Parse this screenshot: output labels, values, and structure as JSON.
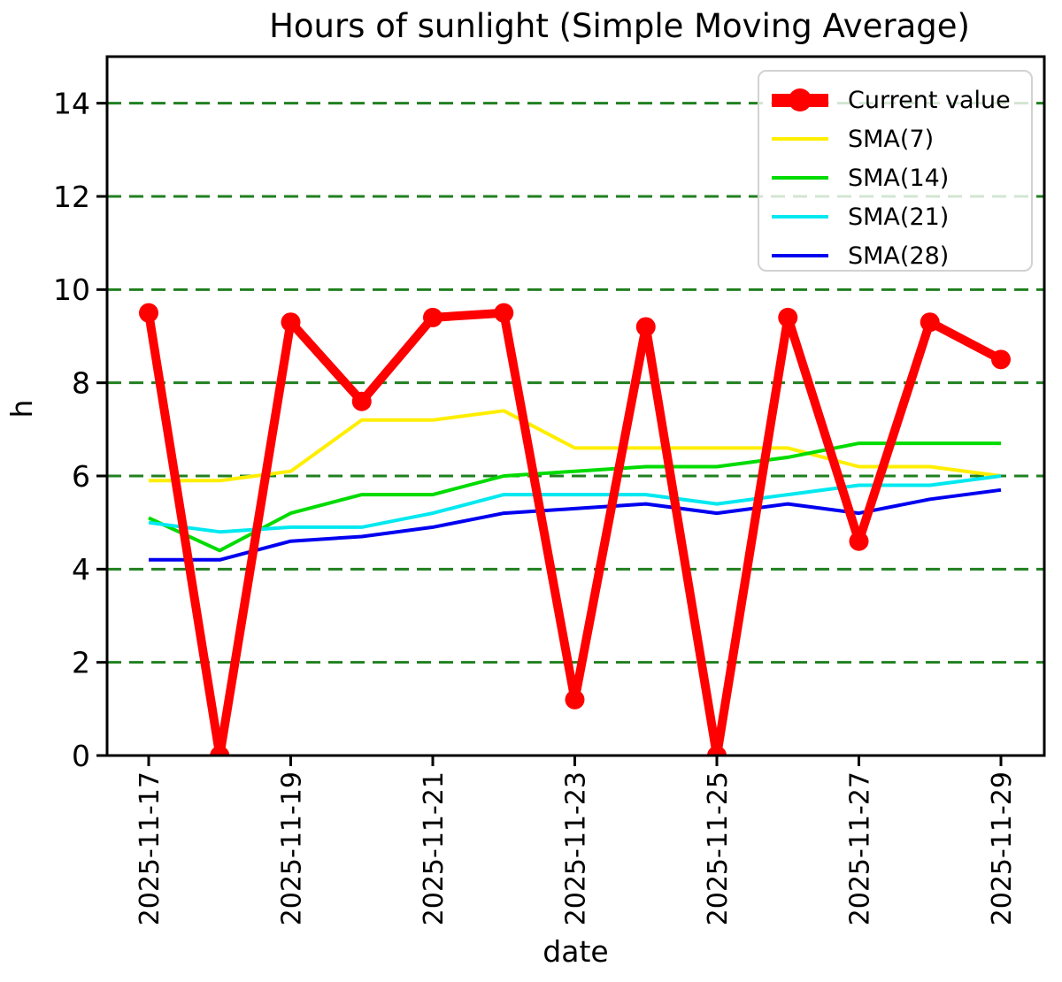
{
  "title": "Hours of sunlight (Simple Moving Average)",
  "xlabel": "date",
  "ylabel": "h",
  "legend": {
    "items": [
      {
        "label": "Current value",
        "color": "#ff0000",
        "thick": true
      },
      {
        "label": "SMA(7)",
        "color": "#ffee00",
        "thick": false
      },
      {
        "label": "SMA(14)",
        "color": "#00db00",
        "thick": false
      },
      {
        "label": "SMA(21)",
        "color": "#00e8f0",
        "thick": false
      },
      {
        "label": "SMA(28)",
        "color": "#0000f0",
        "thick": false
      }
    ]
  },
  "chart_data": {
    "type": "line",
    "x": [
      "2025-11-17",
      "2025-11-18",
      "2025-11-19",
      "2025-11-20",
      "2025-11-21",
      "2025-11-22",
      "2025-11-23",
      "2025-11-24",
      "2025-11-25",
      "2025-11-26",
      "2025-11-27",
      "2025-11-28",
      "2025-11-29"
    ],
    "series": [
      {
        "name": "Current value",
        "color": "#ff0000",
        "width": 10,
        "marker": true,
        "values": [
          9.5,
          0.0,
          9.3,
          7.6,
          9.4,
          9.5,
          1.2,
          9.2,
          0.0,
          9.4,
          4.6,
          9.3,
          8.5
        ]
      },
      {
        "name": "SMA(7)",
        "color": "#ffee00",
        "width": 4,
        "marker": false,
        "values": [
          5.9,
          5.9,
          6.1,
          7.2,
          7.2,
          7.4,
          6.6,
          6.6,
          6.6,
          6.6,
          6.2,
          6.2,
          6.0
        ]
      },
      {
        "name": "SMA(14)",
        "color": "#00db00",
        "width": 4,
        "marker": false,
        "values": [
          5.1,
          4.4,
          5.2,
          5.6,
          5.6,
          6.0,
          6.1,
          6.2,
          6.2,
          6.4,
          6.7,
          6.7,
          6.7
        ]
      },
      {
        "name": "SMA(21)",
        "color": "#00e8f0",
        "width": 4,
        "marker": false,
        "values": [
          5.0,
          4.8,
          4.9,
          4.9,
          5.2,
          5.6,
          5.6,
          5.6,
          5.4,
          5.6,
          5.8,
          5.8,
          6.0
        ]
      },
      {
        "name": "SMA(28)",
        "color": "#0000f0",
        "width": 4,
        "marker": false,
        "values": [
          4.2,
          4.2,
          4.6,
          4.7,
          4.9,
          5.2,
          5.3,
          5.4,
          5.2,
          5.4,
          5.2,
          5.5,
          5.7
        ]
      }
    ],
    "ylim": [
      0,
      15
    ],
    "yticks": [
      0,
      2,
      4,
      6,
      8,
      10,
      12,
      14
    ],
    "xtick_indices": [
      0,
      2,
      4,
      6,
      8,
      10,
      12
    ],
    "grid": {
      "color": "#208020",
      "style": "dashed"
    },
    "legend_position": "upper right",
    "marker_radius": 11
  }
}
